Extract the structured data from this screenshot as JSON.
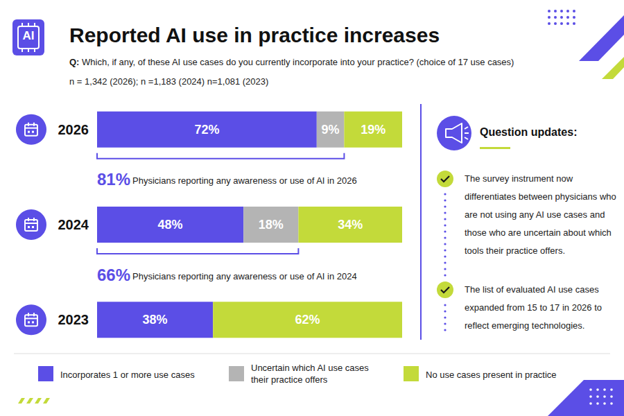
{
  "badge": "AI",
  "chart_data": {
    "type": "bar",
    "orientation": "horizontal",
    "stacked": true,
    "data_labels": true,
    "tick_labels": "y",
    "legend": "bottom",
    "title": "Reported AI use in practice increases",
    "subtitle": "Q: Which, if any, of these AI use cases do you currently incorporate into your practice? (choice of 17 use cases)",
    "note": "n = 1,342 (2026); n =1,183 (2024) n=1,081 (2023)",
    "categories": [
      "2026",
      "2024",
      "2023"
    ],
    "xlim": [
      0,
      100
    ],
    "series": [
      {
        "name": "Incorporates 1 or more use cases",
        "color": "#5b4ee6",
        "values": [
          72,
          48,
          38
        ],
        "value_labels": [
          "72%",
          "48%",
          "38%"
        ]
      },
      {
        "name": "Uncertain which AI use cases their practice offers",
        "color": "#b4b4b4",
        "values": [
          9,
          18,
          null
        ],
        "value_labels": [
          "9%",
          "18%",
          null
        ]
      },
      {
        "name": "No use cases present in practice",
        "color": "#c3da3a",
        "values": [
          19,
          34,
          62
        ],
        "value_labels": [
          "19%",
          "34%",
          "62%"
        ]
      }
    ],
    "annotations": [
      {
        "category": "2026",
        "value": 81,
        "label": "81%",
        "text": "Physicians reporting any awareness or use of AI in 2026"
      },
      {
        "category": "2024",
        "value": 66,
        "label": "66%",
        "text": "Physicians reporting any awareness or use of AI in 2024"
      }
    ]
  },
  "side_panel": {
    "title": "Question updates:",
    "items": [
      "The survey instrument now differentiates between physicians who are not using any AI use cases and those who are uncertain about which tools their practice offers.",
      "The list of evaluated AI use cases expanded from 15 to 17 in 2026 to reflect emerging technologies."
    ]
  }
}
